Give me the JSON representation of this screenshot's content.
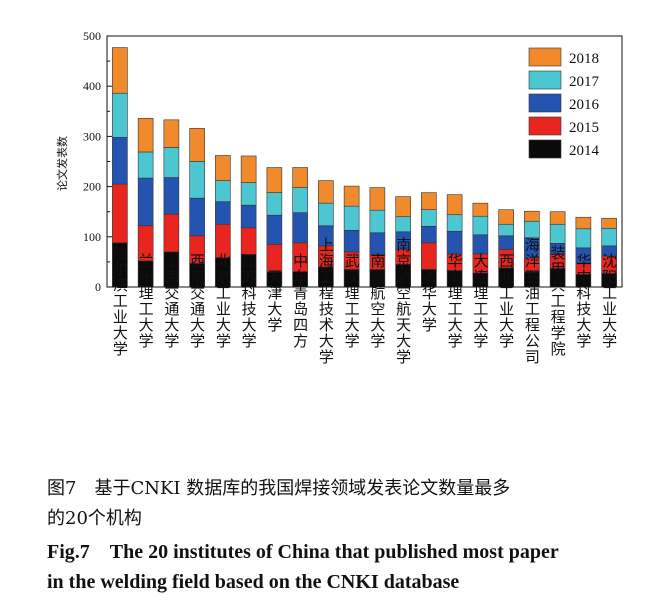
{
  "chart_data": {
    "type": "bar",
    "stacked": true,
    "ylabel": "论文发表数",
    "ylim": [
      0,
      500
    ],
    "yticks": [
      0,
      100,
      200,
      300,
      400,
      500
    ],
    "legend_position": "top-right",
    "categories": [
      "哈尔滨工业大学",
      "兰州理工大学",
      "上海交通大学",
      "西南交通大学",
      "北京工业大学",
      "江苏科技大学",
      "天津大学",
      "中车青岛四方",
      "上海工程技术大学",
      "武汉理工大学",
      "南昌航空大学",
      "南京航空航天大学",
      "清华大学",
      "华南理工大学",
      "大连理工大学",
      "西北工业大学",
      "海洋石油工程公司",
      "装甲兵工程学院",
      "华中科技大学",
      "沈阳工业大学"
    ],
    "series": [
      {
        "name": "2014",
        "color": "#0a0a0a",
        "values": [
          88,
          52,
          70,
          47,
          58,
          65,
          30,
          30,
          40,
          35,
          35,
          45,
          35,
          33,
          28,
          38,
          30,
          37,
          25,
          27
        ]
      },
      {
        "name": "2015",
        "color": "#e8261f",
        "values": [
          117,
          70,
          75,
          55,
          67,
          53,
          55,
          58,
          42,
          35,
          30,
          30,
          53,
          33,
          38,
          37,
          28,
          28,
          23,
          35
        ]
      },
      {
        "name": "2016",
        "color": "#2454b0",
        "values": [
          93,
          95,
          73,
          75,
          45,
          45,
          58,
          60,
          40,
          43,
          43,
          35,
          33,
          45,
          38,
          27,
          40,
          22,
          30,
          20
        ]
      },
      {
        "name": "2017",
        "color": "#4cc7d2",
        "values": [
          88,
          52,
          60,
          73,
          42,
          45,
          45,
          50,
          45,
          48,
          45,
          30,
          33,
          33,
          37,
          23,
          33,
          38,
          38,
          35
        ]
      },
      {
        "name": "2018",
        "color": "#f08a2c",
        "values": [
          91,
          67,
          55,
          66,
          50,
          53,
          50,
          40,
          45,
          40,
          45,
          40,
          34,
          40,
          26,
          29,
          20,
          25,
          23,
          20
        ]
      }
    ]
  },
  "caption": {
    "cn_line1": "图7　基于CNKI 数据库的我国焊接领域发表论文数量最多",
    "cn_line2": "的20个机构",
    "en_line1": "Fig.7　The 20 institutes of China that published most paper",
    "en_line2": "in the welding field based on the CNKI database"
  }
}
